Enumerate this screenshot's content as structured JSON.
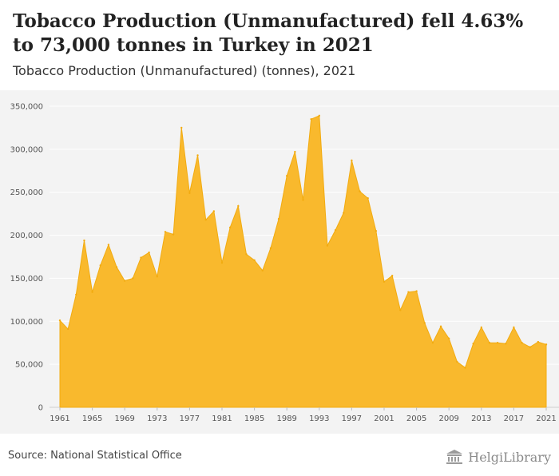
{
  "title": "Tobacco Production (Unmanufactured) fell 4.63% to 73,000 tonnes in Turkey in 2021",
  "subtitle": "Tobacco Production (Unmanufactured) (tonnes), 2021",
  "source": "Source: National Statistical Office",
  "logo": {
    "text": "HelgiLibrary",
    "icon": "bank-building-icon"
  },
  "colors": {
    "area_fill": "#f9b92d",
    "area_stroke": "#f2ab10",
    "plot_background": "#f3f3f3",
    "gridline": "#ffffff"
  },
  "chart_data": {
    "type": "area",
    "title": "Tobacco Production (Unmanufactured) (tonnes), 2021",
    "xlabel": "",
    "ylabel": "",
    "x": [
      1961,
      1962,
      1963,
      1964,
      1965,
      1966,
      1967,
      1968,
      1969,
      1970,
      1971,
      1972,
      1973,
      1974,
      1975,
      1976,
      1977,
      1978,
      1979,
      1980,
      1981,
      1982,
      1983,
      1984,
      1985,
      1986,
      1987,
      1988,
      1989,
      1990,
      1991,
      1992,
      1993,
      1994,
      1995,
      1996,
      1997,
      1998,
      1999,
      2000,
      2001,
      2002,
      2003,
      2004,
      2005,
      2006,
      2007,
      2008,
      2009,
      2010,
      2011,
      2012,
      2013,
      2014,
      2015,
      2016,
      2017,
      2018,
      2019,
      2020,
      2021
    ],
    "series": [
      {
        "values": [
          101000,
          91000,
          131000,
          194000,
          134000,
          165000,
          189000,
          163000,
          147000,
          150000,
          174000,
          180000,
          152000,
          204000,
          201000,
          325000,
          249000,
          293000,
          218000,
          228000,
          168000,
          209000,
          234000,
          178000,
          171000,
          159000,
          185000,
          219000,
          269000,
          297000,
          241000,
          335000,
          339000,
          188000,
          206000,
          226000,
          287000,
          251000,
          243000,
          205000,
          146000,
          153000,
          113000,
          134000,
          135000,
          98000,
          75000,
          94000,
          80000,
          53000,
          46000,
          74000,
          93000,
          75000,
          75000,
          74000,
          93000,
          75000,
          70000,
          76000,
          73000
        ]
      }
    ],
    "ylim": [
      0,
      350000
    ],
    "yticks": [
      0,
      50000,
      100000,
      150000,
      200000,
      250000,
      300000,
      350000
    ],
    "ytick_labels": [
      "0",
      "50,000",
      "100,000",
      "150,000",
      "200,000",
      "250,000",
      "300,000",
      "350,000"
    ],
    "xticks": [
      1961,
      1965,
      1969,
      1973,
      1977,
      1981,
      1985,
      1989,
      1993,
      1997,
      2001,
      2005,
      2009,
      2013,
      2017,
      2021
    ],
    "xtick_labels": [
      "1961",
      "1965",
      "1969",
      "1973",
      "1977",
      "1981",
      "1985",
      "1989",
      "1993",
      "1997",
      "2001",
      "2005",
      "2009",
      "2013",
      "2017",
      "2021"
    ],
    "grid": true,
    "legend": "none"
  }
}
